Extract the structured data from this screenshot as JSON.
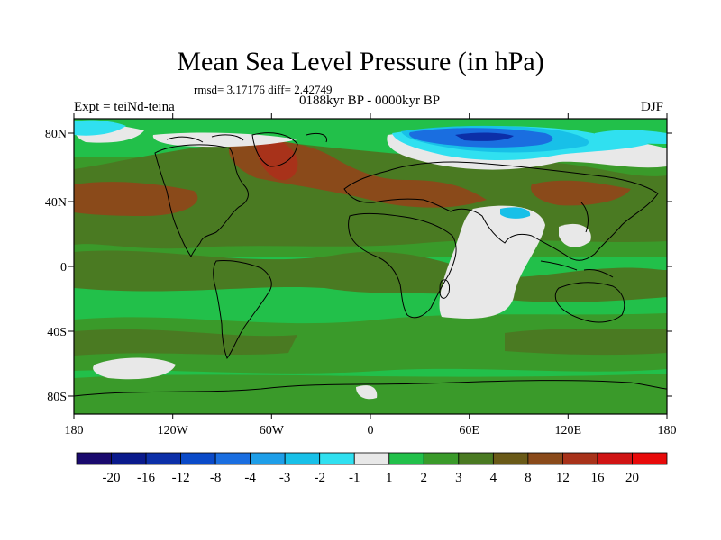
{
  "title": "Mean Sea Level Pressure (in hPa)",
  "stats": "rmsd= 3.17176 diff= 2.42749",
  "period": "0188kyr BP - 0000kyr BP",
  "experiment": "Expt = teiNd-teina",
  "season": "DJF",
  "lat_labels": [
    "80N",
    "40N",
    "0",
    "40S",
    "80S"
  ],
  "lon_labels": [
    "180",
    "120W",
    "60W",
    "0",
    "60E",
    "120E",
    "180"
  ],
  "colorbar": {
    "labels": [
      "-20",
      "-16",
      "-12",
      "-8",
      "-4",
      "-3",
      "-2",
      "-1",
      "1",
      "2",
      "3",
      "4",
      "8",
      "12",
      "16",
      "20"
    ],
    "colors": [
      "#1a0a6e",
      "#0a1a8c",
      "#0c2fa8",
      "#0a4ac8",
      "#1a6ee0",
      "#1e9ee8",
      "#18c0e8",
      "#30e0f0",
      "#e8e8e8",
      "#22c04a",
      "#3a9a2a",
      "#4a7a22",
      "#6a5a18",
      "#8a4a1a",
      "#a8321a",
      "#d01414",
      "#e80a0a"
    ]
  },
  "colors": {
    "ocean_base": "#22c04a",
    "mid_green": "#3a9a2a",
    "dark_olive": "#4a7a22",
    "olive_brown": "#6a5a18",
    "brown": "#8a4a1a",
    "red_brown": "#a8321a",
    "red": "#d01414",
    "light": "#e8e8e8",
    "cyan": "#30e0f0",
    "light_blue": "#18c0e8",
    "blue": "#1a6ee0",
    "dark_blue": "#0c2fa8"
  }
}
